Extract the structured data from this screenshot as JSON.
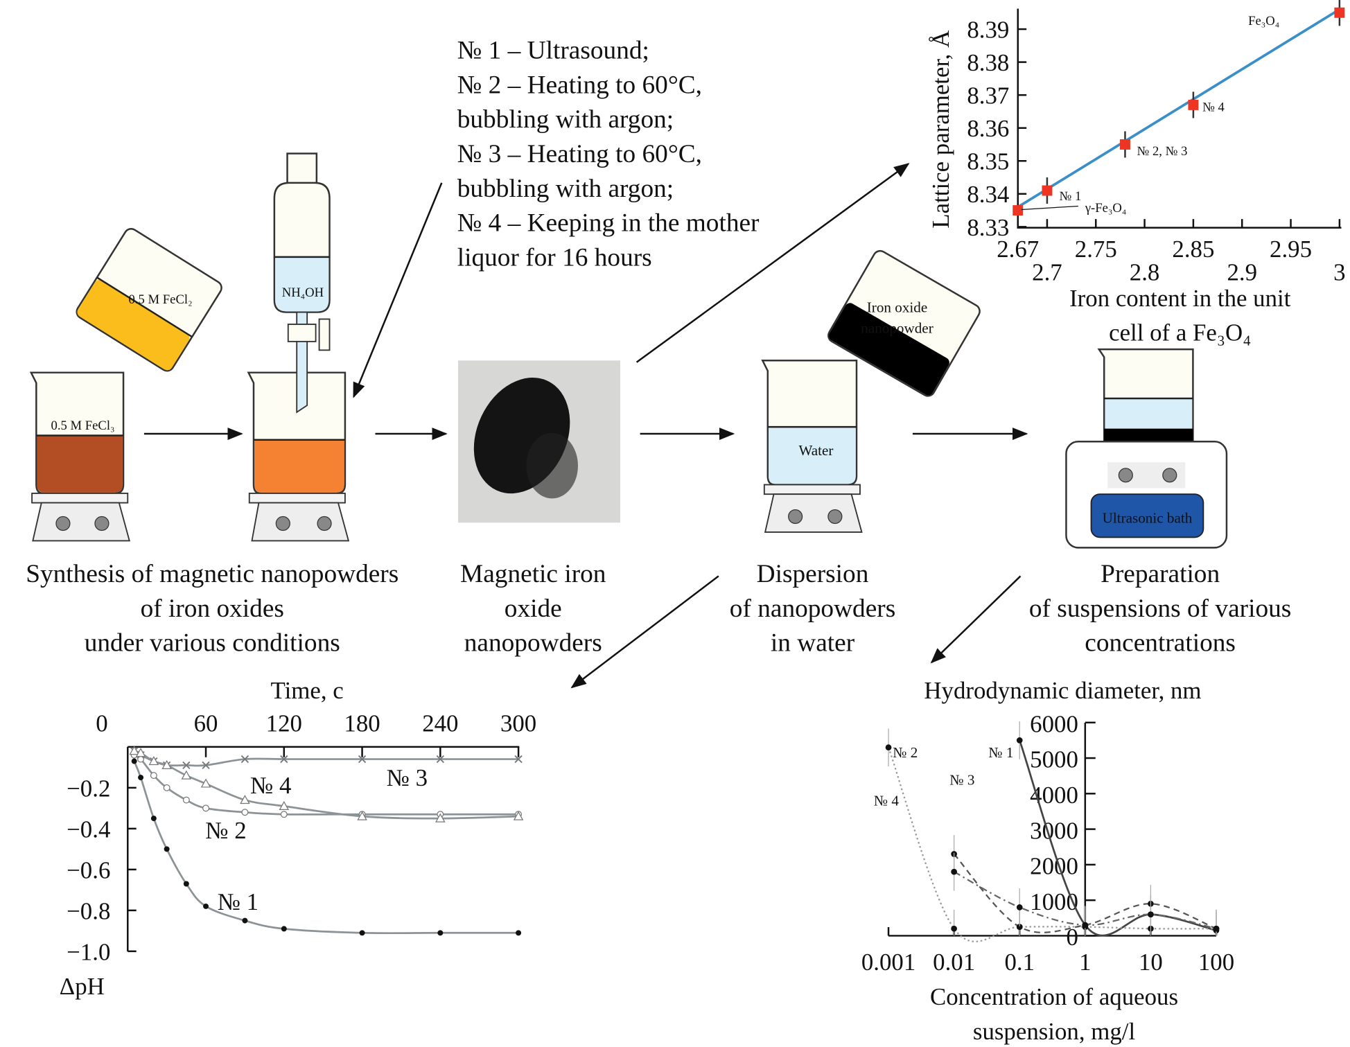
{
  "conditions": [
    "№ 1 – Ultrasound;",
    "№ 2 – Heating to 60°C,",
    "bubbling with argon;",
    "№ 3 – Heating to 60°C,",
    "bubbling with argon;",
    "№ 4 – Keeping in the mother",
    "liquor for 16 hours"
  ],
  "apparatus": {
    "fecl2_label": "0.5 M FeCl₂",
    "fecl3_label": "0.5 M FeCl₃",
    "nh4oh_label": "NH₄OH",
    "powder_label_1": "Iron oxide",
    "powder_label_2": "nanopowder",
    "water_label": "Water",
    "bath_label": "Ultrasonic bath"
  },
  "captions": {
    "synthesis": [
      "Synthesis of magnetic nanopowders",
      "of iron oxides",
      "under various conditions"
    ],
    "nanopowders": [
      "Magnetic iron",
      "oxide",
      "nanopowders"
    ],
    "dispersion": [
      "Dispersion",
      "of nanopowders",
      "in water"
    ],
    "preparation": [
      "Preparation",
      "of suspensions of various",
      "concentrations"
    ]
  },
  "colors": {
    "fecl2": "#fbbd1b",
    "fecl3": "#b34e24",
    "mixture": "#f58232",
    "nh4oh": "#d8eef8",
    "water": "#d8eef8",
    "bath": "#1f56a8",
    "beaker": "#fdfdf3",
    "fit_line": "#3b8fc9",
    "marker": "#ee3524"
  },
  "chart_data": [
    {
      "type": "scatter",
      "ylabel": "Lattice parameter, Å",
      "xlabel_1": "Iron content in the unit",
      "xlabel_2": "cell of a Fe₃O₄",
      "xlim": [
        2.67,
        3.0
      ],
      "ylim": [
        8.33,
        8.395
      ],
      "x_ticks_upper": [
        "2.67",
        "2.75",
        "2.85",
        "2.95"
      ],
      "x_ticks_lower": [
        "2.7",
        "2.8",
        "2.9",
        "3"
      ],
      "y_ticks": [
        "8.33",
        "8.34",
        "8.35",
        "8.36",
        "8.37",
        "8.38",
        "8.39"
      ],
      "fit_line": {
        "x": [
          2.67,
          3.0
        ],
        "y": [
          8.336,
          8.396
        ]
      },
      "points": [
        {
          "label": "γ-Fe₃O₄",
          "x": 2.67,
          "y": 8.335,
          "err": 0
        },
        {
          "label": "№ 1",
          "x": 2.7,
          "y": 8.341,
          "err": 0.004
        },
        {
          "label": "№ 2, № 3",
          "x": 2.78,
          "y": 8.355,
          "err": 0.004
        },
        {
          "label": "№ 4",
          "x": 2.85,
          "y": 8.367,
          "err": 0.004
        },
        {
          "label": "Fe₃O₄",
          "x": 3.0,
          "y": 8.395,
          "err": 0.004
        }
      ]
    },
    {
      "type": "line",
      "xlabel": "Time, c",
      "ylabel": "ΔpH",
      "xlim": [
        0,
        300
      ],
      "ylim": [
        -1.0,
        0
      ],
      "x_ticks": [
        "0",
        "60",
        "120",
        "180",
        "240",
        "300"
      ],
      "y_ticks": [
        "−0.2",
        "−0.4",
        "−0.6",
        "−0.8",
        "−1.0"
      ],
      "x": [
        5,
        10,
        20,
        30,
        45,
        60,
        90,
        120,
        180,
        240,
        300
      ],
      "series": [
        {
          "name": "№ 1",
          "marker": "dot",
          "values": [
            -0.07,
            -0.15,
            -0.35,
            -0.5,
            -0.67,
            -0.78,
            -0.85,
            -0.89,
            -0.91,
            -0.91,
            -0.91
          ]
        },
        {
          "name": "№ 2",
          "marker": "circle",
          "values": [
            -0.04,
            -0.06,
            -0.14,
            -0.2,
            -0.26,
            -0.3,
            -0.32,
            -0.33,
            -0.33,
            -0.33,
            -0.33
          ]
        },
        {
          "name": "№ 3",
          "marker": "star",
          "values": [
            -0.02,
            -0.04,
            -0.07,
            -0.09,
            -0.09,
            -0.09,
            -0.06,
            -0.06,
            -0.06,
            -0.06,
            -0.06
          ]
        },
        {
          "name": "№ 4",
          "marker": "triangle",
          "values": [
            -0.02,
            -0.03,
            -0.07,
            -0.09,
            -0.14,
            -0.18,
            -0.26,
            -0.29,
            -0.34,
            -0.35,
            -0.34
          ]
        }
      ]
    },
    {
      "type": "line",
      "ylabel": "Hydrodynamic diameter, nm",
      "xlabel_1": "Concentration of aqueous",
      "xlabel_2": "suspension, mg/l",
      "x_scale": "log",
      "xlim": [
        0.001,
        100
      ],
      "ylim": [
        0,
        6000
      ],
      "x_ticks": [
        "0.001",
        "0.01",
        "0.1",
        "1",
        "10",
        "100"
      ],
      "y_ticks": [
        "0",
        "1000",
        "2000",
        "3000",
        "4000",
        "5000",
        "6000"
      ],
      "series": [
        {
          "name": "№ 1",
          "style": "solid",
          "x": [
            0.1,
            1,
            10,
            100
          ],
          "values": [
            5500,
            300,
            600,
            150
          ]
        },
        {
          "name": "№ 2",
          "style": "dotted",
          "x": [
            0.001,
            0.01,
            0.1,
            1,
            10,
            100
          ],
          "values": [
            5300,
            200,
            250,
            250,
            200,
            200
          ]
        },
        {
          "name": "№ 3",
          "style": "dashed",
          "x": [
            0.01,
            0.1,
            1,
            10,
            100
          ],
          "values": [
            2300,
            250,
            300,
            900,
            200
          ]
        },
        {
          "name": "№ 4",
          "style": "dashdot",
          "x": [
            0.01,
            0.1,
            1,
            10,
            100
          ],
          "values": [
            1800,
            800,
            300,
            600,
            200
          ]
        }
      ]
    }
  ]
}
